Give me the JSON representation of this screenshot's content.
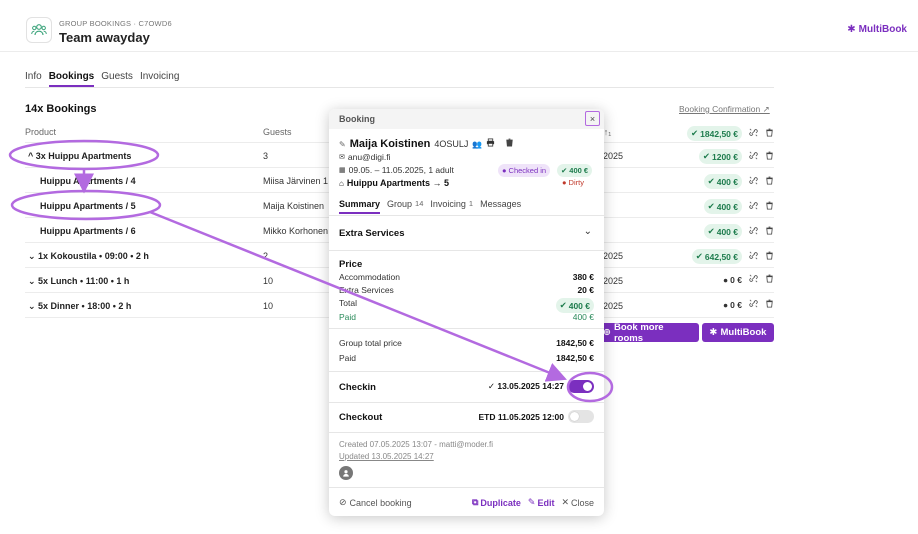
{
  "header": {
    "subtitle": "GROUP BOOKINGS · C7OWD6",
    "title": "Team awayday",
    "multibook_label": "MultiBook",
    "icon": "group-icon"
  },
  "tabs": [
    {
      "label": "Info",
      "active": false
    },
    {
      "label": "Bookings",
      "active": true
    },
    {
      "label": "Guests",
      "active": false
    },
    {
      "label": "Invoicing",
      "active": false
    }
  ],
  "bookings": {
    "count_title": "14x Bookings",
    "confirmation_link": "Booking Confirmation ↗",
    "columns": {
      "product": "Product",
      "guests": "Guests",
      "date_fragment": "'↑₁"
    },
    "header_total": "1842,50 €",
    "rows": [
      {
        "product": "^ 3x Huippu Apartments",
        "guests": "3",
        "date": "2025",
        "price": "1200 €",
        "price_style": "green"
      },
      {
        "product": "Huippu Apartments / 4",
        "guests": "Miisa Järvinen 1",
        "date": "",
        "price": "400 €",
        "price_style": "green"
      },
      {
        "product": "Huippu Apartments / 5",
        "guests": "Maija Koistinen",
        "date": "",
        "price": "400 €",
        "price_style": "green"
      },
      {
        "product": "Huippu Apartments / 6",
        "guests": "Mikko Korhonen",
        "date": "",
        "price": "400 €",
        "price_style": "green"
      },
      {
        "product": "⌄ 1x Kokoustila • 09:00 • 2 h",
        "guests": "2",
        "date": "2025",
        "price": "642,50 €",
        "price_style": "green"
      },
      {
        "product": "⌄ 5x Lunch • 11:00 • 1 h",
        "guests": "10",
        "date": "2025",
        "price": "0 €",
        "price_style": "gray"
      },
      {
        "product": "⌄ 5x Dinner • 18:00 • 2 h",
        "guests": "10",
        "date": "2025",
        "price": "0 €",
        "price_style": "gray"
      }
    ],
    "book_more_label": "Book more rooms",
    "multibook_label": "MultiBook"
  },
  "modal": {
    "title": "Booking",
    "close_icon": "×",
    "guest_name": "Maija Koistinen",
    "booking_code": "4OSULJ",
    "email": "anu@digi.fi",
    "dates": "09.05. – 11.05.2025, 1 adult",
    "room": "Huippu Apartments → 5",
    "checked_in_badge": "Checked in",
    "price_badge": "400 €",
    "dirty_badge": "Dirty",
    "tabs": [
      {
        "label": "Summary",
        "count": "",
        "active": true
      },
      {
        "label": "Group",
        "count": "14",
        "active": false
      },
      {
        "label": "Invoicing",
        "count": "1",
        "active": false
      },
      {
        "label": "Messages",
        "count": "",
        "active": false
      }
    ],
    "extra_services_title": "Extra Services",
    "price_title": "Price",
    "price_lines": [
      {
        "label": "Accommodation",
        "value": "380 €"
      },
      {
        "label": "Extra Services",
        "value": "20 €"
      }
    ],
    "total_label": "Total",
    "total_value": "400 €",
    "paid_label": "Paid",
    "paid_value": "400 €",
    "group_total_label": "Group total price",
    "group_total_value": "1842,50 €",
    "group_paid_label": "Paid",
    "group_paid_value": "1842,50 €",
    "checkin_label": "Checkin",
    "checkin_value": "✓ 13.05.2025 14:27",
    "checkin_on": true,
    "checkout_label": "Checkout",
    "checkout_value": "ETD 11.05.2025 12:00",
    "checkout_on": false,
    "created_text": "Created 07.05.2025 13:07 - matti@moder.fi",
    "updated_text": "Updated 13.05.2025 14:27",
    "cancel_label": "Cancel booking",
    "duplicate_label": "Duplicate",
    "edit_label": "Edit",
    "close_label": "Close"
  },
  "colors": {
    "accent": "#7b2fbf",
    "highlight": "#b36ae0",
    "green_badge_bg": "#e3f4ea",
    "green_text": "#1e7c4d"
  }
}
